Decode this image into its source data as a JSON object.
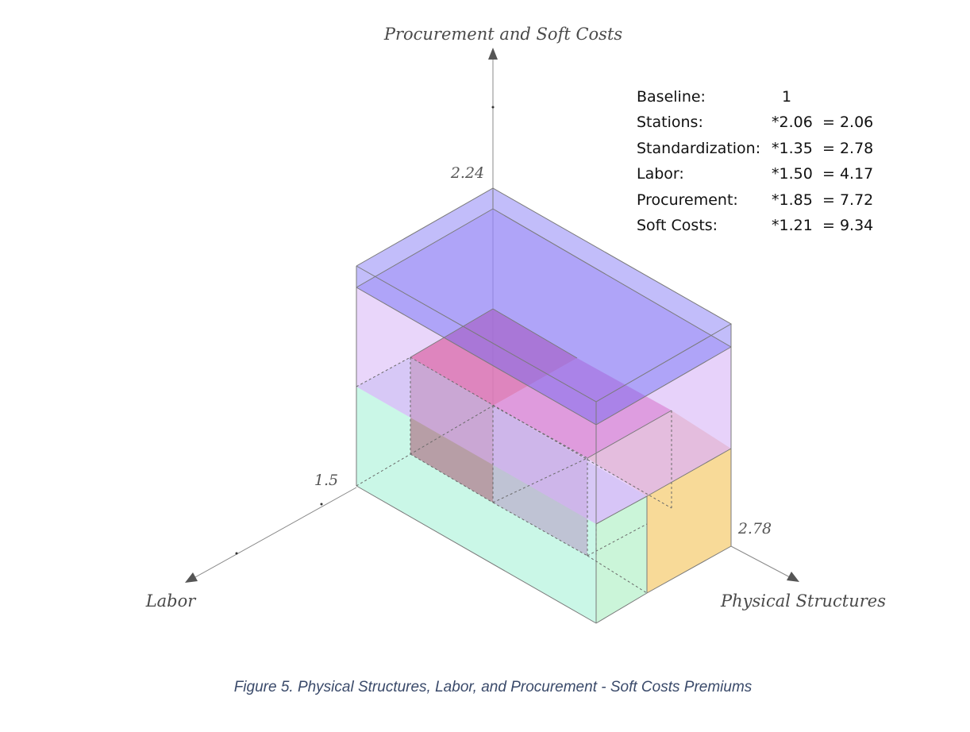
{
  "axes": {
    "vertical": {
      "label": "Procurement and Soft Costs",
      "tick": "2.24"
    },
    "left": {
      "label": "Labor",
      "tick": "1.5"
    },
    "right": {
      "label": "Physical Structures",
      "tick": "2.78"
    }
  },
  "legend": [
    {
      "name": "Baseline:",
      "factor": "1",
      "result": ""
    },
    {
      "name": "Stations:",
      "factor": "*2.06",
      "result": "= 2.06"
    },
    {
      "name": "Standardization:",
      "factor": "*1.35",
      "result": "= 2.78"
    },
    {
      "name": "Labor:",
      "factor": "*1.50",
      "result": "= 4.17"
    },
    {
      "name": "Procurement:",
      "factor": "*1.85",
      "result": "= 7.72"
    },
    {
      "name": "Soft Costs:",
      "factor": "*1.21",
      "result": "= 9.34"
    }
  ],
  "colors": {
    "soft_costs": "#8f86f6",
    "procurement": "#c9a3f6",
    "labor": "#9ef0d4",
    "standardization": "#f4c154",
    "stations": "#e01060",
    "baseline": "#f08a6a"
  },
  "caption": "Figure 5. Physical Structures, Labor, and Procurement - Soft Costs Premiums"
}
